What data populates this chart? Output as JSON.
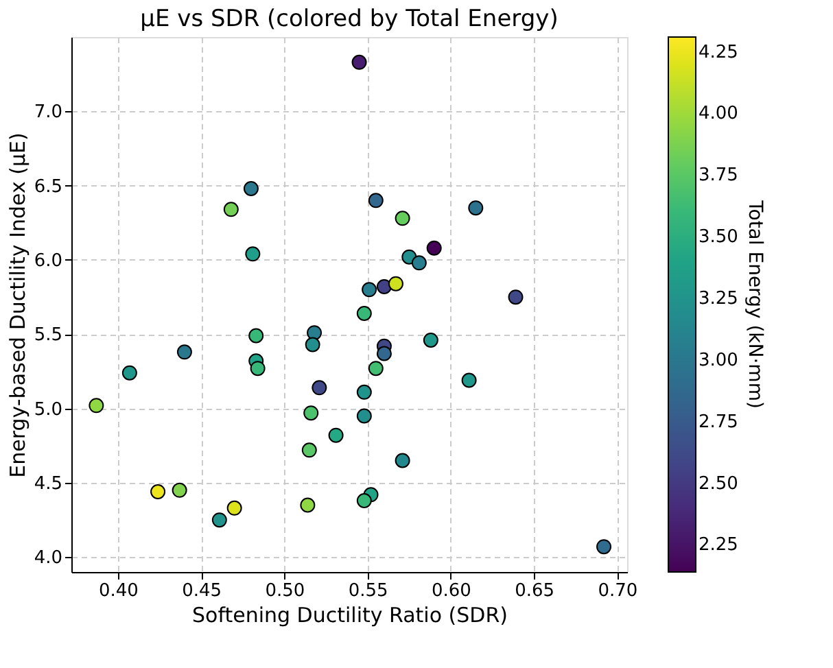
{
  "chart_data": {
    "type": "scatter",
    "title": "μE vs SDR (colored by Total Energy)",
    "xlabel": "Softening Ductility Ratio (SDR)",
    "ylabel": "Energy-based Ductility Index (μE)",
    "clabel": "Total Energy (kN·mm)",
    "x": [
      0.48,
      0.468,
      0.481,
      0.545,
      0.555,
      0.571,
      0.615,
      0.59,
      0.575,
      0.581,
      0.551,
      0.56,
      0.567,
      0.639,
      0.483,
      0.518,
      0.517,
      0.44,
      0.407,
      0.483,
      0.484,
      0.521,
      0.387,
      0.516,
      0.531,
      0.515,
      0.424,
      0.437,
      0.47,
      0.461,
      0.514,
      0.548,
      0.588,
      0.56,
      0.56,
      0.555,
      0.611,
      0.548,
      0.548,
      0.571,
      0.552,
      0.548,
      0.692
    ],
    "values": [
      6.48,
      6.34,
      6.04,
      7.33,
      6.4,
      6.28,
      6.35,
      6.08,
      6.02,
      5.98,
      5.8,
      5.82,
      5.84,
      5.75,
      5.49,
      5.51,
      5.43,
      5.38,
      5.24,
      5.32,
      5.27,
      5.14,
      5.02,
      4.97,
      4.82,
      4.72,
      4.44,
      4.45,
      4.33,
      4.25,
      4.35,
      5.64,
      5.46,
      5.42,
      5.37,
      5.27,
      5.19,
      5.11,
      4.95,
      4.65,
      4.42,
      4.38,
      4.07
    ],
    "cvalues": [
      3.0,
      3.85,
      3.35,
      2.3,
      2.85,
      3.8,
      2.95,
      2.15,
      3.2,
      3.05,
      3.05,
      2.55,
      4.15,
      2.6,
      3.6,
      3.05,
      3.2,
      3.0,
      3.3,
      3.4,
      3.6,
      2.6,
      3.95,
      3.7,
      3.45,
      3.75,
      4.25,
      3.9,
      4.2,
      3.25,
      3.95,
      3.6,
      3.3,
      2.6,
      2.85,
      3.65,
      3.3,
      3.25,
      3.2,
      3.15,
      3.4,
      3.6,
      2.9
    ],
    "xlim": [
      0.372,
      0.706
    ],
    "xticks": [
      {
        "value": 0.4,
        "label": "0.40"
      },
      0.45,
      {
        "value": 0.5,
        "label": "0.50"
      },
      0.55,
      {
        "value": 0.6,
        "label": "0.60"
      },
      0.65,
      {
        "value": 0.7,
        "label": "0.70"
      }
    ],
    "ylim": [
      3.9,
      7.5
    ],
    "yticks": [
      {
        "value": 4,
        "label": "4.0"
      },
      4.5,
      {
        "value": 5,
        "label": "5.0"
      },
      5.5,
      {
        "value": 6,
        "label": "6.0"
      },
      6.5,
      {
        "value": 7,
        "label": "7.0"
      }
    ],
    "clim": [
      2.14,
      4.31
    ],
    "cticks": [
      2.25,
      {
        "value": 2.5,
        "label": "2.50"
      },
      2.75,
      {
        "value": 3,
        "label": "3.00"
      },
      3.25,
      {
        "value": 3.5,
        "label": "3.50"
      },
      3.75,
      {
        "value": 4,
        "label": "4.00"
      },
      4.25
    ],
    "grid": true,
    "marker": "circle"
  }
}
